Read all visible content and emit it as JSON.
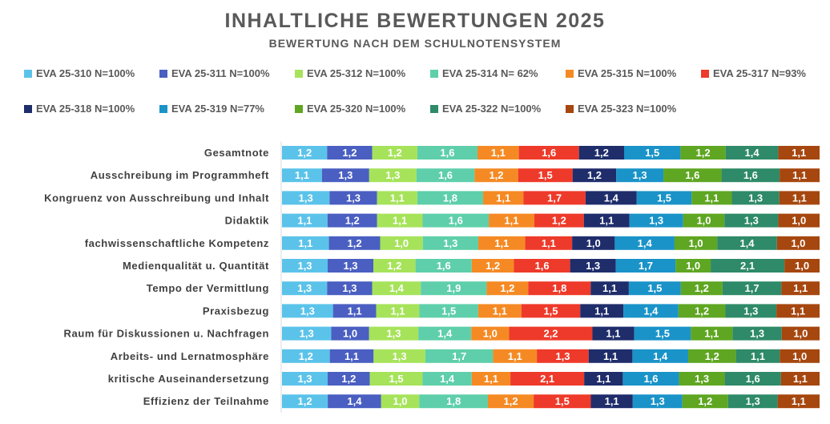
{
  "chart_data": {
    "type": "bar",
    "orientation": "horizontal",
    "stacked": true,
    "title": "INHALTLICHE BEWERTUNGEN 2025",
    "subtitle": "BEWERTUNG NACH DEM SCHULNOTENSYSTEM",
    "legend_position": "top",
    "grid": false,
    "categories": [
      "Gesamtnote",
      "Ausschreibung im Programmheft",
      "Kongruenz von Ausschreibung und Inhalt",
      "Didaktik",
      "fachwissenschaftliche Kompetenz",
      "Medienqualität u. Quantität",
      "Tempo der Vermittlung",
      "Praxisbezug",
      "Raum für Diskussionen u. Nachfragen",
      "Arbeits- und Lernatmosphäre",
      "kritische Auseinandersetzung",
      "Effizienz der Teilnahme"
    ],
    "series": [
      {
        "name": "EVA 25-310 N=100%",
        "color": "#5BC3EA",
        "values": [
          1.2,
          1.1,
          1.3,
          1.1,
          1.1,
          1.3,
          1.3,
          1.3,
          1.3,
          1.2,
          1.3,
          1.2
        ]
      },
      {
        "name": "EVA 25-311 N=100%",
        "color": "#4A5FC1",
        "values": [
          1.2,
          1.3,
          1.3,
          1.2,
          1.2,
          1.3,
          1.3,
          1.1,
          1.0,
          1.1,
          1.2,
          1.4
        ]
      },
      {
        "name": "EVA 25-312 N=100%",
        "color": "#A6E35A",
        "values": [
          1.2,
          1.3,
          1.1,
          1.1,
          1.0,
          1.2,
          1.4,
          1.1,
          1.3,
          1.3,
          1.5,
          1.0
        ]
      },
      {
        "name": "EVA 25-314 N= 62%",
        "color": "#5ECFAA",
        "values": [
          1.6,
          1.6,
          1.8,
          1.6,
          1.3,
          1.6,
          1.9,
          1.5,
          1.4,
          1.7,
          1.4,
          1.8
        ]
      },
      {
        "name": "EVA 25-315 N=100%",
        "color": "#F58A24",
        "values": [
          1.1,
          1.2,
          1.1,
          1.1,
          1.1,
          1.2,
          1.2,
          1.1,
          1.0,
          1.1,
          1.1,
          1.2
        ]
      },
      {
        "name": "EVA 25-317 N=93%",
        "color": "#EE3A2A",
        "values": [
          1.6,
          1.5,
          1.7,
          1.2,
          1.1,
          1.6,
          1.8,
          1.5,
          2.2,
          1.3,
          2.1,
          1.5
        ]
      },
      {
        "name": "EVA 25-318 N=100%",
        "color": "#1F2D6B",
        "values": [
          1.2,
          1.2,
          1.4,
          1.1,
          1.0,
          1.3,
          1.1,
          1.1,
          1.1,
          1.1,
          1.1,
          1.1
        ]
      },
      {
        "name": "EVA 25-319 N=77%",
        "color": "#1A93C8",
        "values": [
          1.5,
          1.3,
          1.5,
          1.3,
          1.4,
          1.7,
          1.5,
          1.4,
          1.5,
          1.4,
          1.6,
          1.3
        ]
      },
      {
        "name": "EVA 25-320 N=100%",
        "color": "#5FA622",
        "values": [
          1.2,
          1.6,
          1.1,
          1.0,
          1.0,
          1.0,
          1.2,
          1.2,
          1.1,
          1.2,
          1.3,
          1.2
        ]
      },
      {
        "name": "EVA 25-322 N=100%",
        "color": "#2E8A68",
        "values": [
          1.4,
          1.6,
          1.3,
          1.3,
          1.4,
          2.1,
          1.7,
          1.3,
          1.3,
          1.1,
          1.6,
          1.3
        ]
      },
      {
        "name": "EVA 25-323 N=100%",
        "color": "#A6470F",
        "values": [
          1.1,
          1.1,
          1.1,
          1.0,
          1.0,
          1.0,
          1.1,
          1.1,
          1.0,
          1.0,
          1.1,
          1.1
        ]
      }
    ]
  }
}
